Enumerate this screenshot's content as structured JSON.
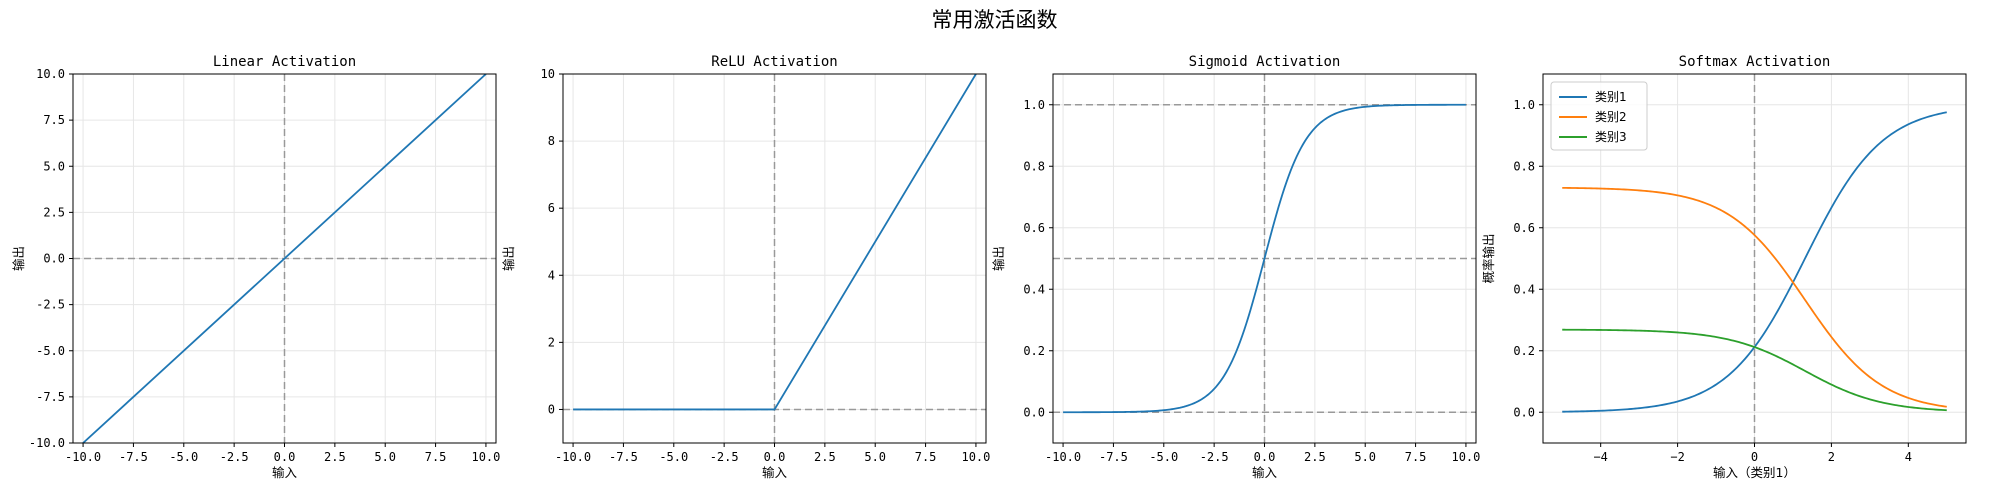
{
  "figure": {
    "suptitle": "常用激活函数"
  },
  "colors": {
    "c1": "#1f77b4",
    "c2": "#ff7f0e",
    "c3": "#2ca02c",
    "reference_line": "#999999",
    "grid": "#e6e6e6"
  },
  "chart_data": [
    {
      "type": "line",
      "title": "Linear Activation",
      "xlabel": "输入",
      "ylabel": "输出",
      "xlim": [
        -10.5,
        10.5
      ],
      "ylim": [
        -10,
        10
      ],
      "xticks": [
        -10,
        -7.5,
        -5,
        -2.5,
        0,
        2.5,
        5,
        7.5,
        10
      ],
      "xtick_labels": [
        "-10.0",
        "-7.5",
        "-5.0",
        "-2.5",
        "0.0",
        "2.5",
        "5.0",
        "7.5",
        "10.0"
      ],
      "yticks": [
        -10,
        -7.5,
        -5,
        -2.5,
        0,
        2.5,
        5,
        7.5,
        10
      ],
      "ytick_labels": [
        "-10.0",
        "-7.5",
        "-5.0",
        "-2.5",
        "0.0",
        "2.5",
        "5.0",
        "7.5",
        "10.0"
      ],
      "grid": true,
      "reference_lines": {
        "horizontal": [
          0
        ],
        "vertical": [
          0
        ]
      },
      "series": [
        {
          "function": "linear",
          "x": [
            -10,
            10
          ],
          "y": [
            -10,
            10
          ]
        }
      ]
    },
    {
      "type": "line",
      "title": "ReLU Activation",
      "xlabel": "输入",
      "ylabel": "输出",
      "xlim": [
        -10.5,
        10.5
      ],
      "ylim": [
        -1,
        10
      ],
      "xticks": [
        -10,
        -7.5,
        -5,
        -2.5,
        0,
        2.5,
        5,
        7.5,
        10
      ],
      "xtick_labels": [
        "-10.0",
        "-7.5",
        "-5.0",
        "-2.5",
        "0.0",
        "2.5",
        "5.0",
        "7.5",
        "10.0"
      ],
      "yticks": [
        0,
        2,
        4,
        6,
        8,
        10
      ],
      "ytick_labels": [
        "0",
        "2",
        "4",
        "6",
        "8",
        "10"
      ],
      "grid": true,
      "reference_lines": {
        "horizontal": [
          0
        ],
        "vertical": [
          0
        ]
      },
      "series": [
        {
          "function": "relu",
          "x": [
            -10,
            0,
            10
          ],
          "y": [
            0,
            0,
            10
          ]
        }
      ]
    },
    {
      "type": "line",
      "title": "Sigmoid Activation",
      "xlabel": "输入",
      "ylabel": "输出",
      "xlim": [
        -10.5,
        10.5
      ],
      "ylim": [
        -0.1,
        1.1
      ],
      "xticks": [
        -10,
        -7.5,
        -5,
        -2.5,
        0,
        2.5,
        5,
        7.5,
        10
      ],
      "xtick_labels": [
        "-10.0",
        "-7.5",
        "-5.0",
        "-2.5",
        "0.0",
        "2.5",
        "5.0",
        "7.5",
        "10.0"
      ],
      "yticks": [
        0,
        0.2,
        0.4,
        0.6,
        0.8,
        1.0
      ],
      "ytick_labels": [
        "0.0",
        "0.2",
        "0.4",
        "0.6",
        "0.8",
        "1.0"
      ],
      "grid": true,
      "reference_lines": {
        "horizontal": [
          0,
          0.5,
          1
        ],
        "vertical": [
          0
        ]
      },
      "series": [
        {
          "function": "sigmoid",
          "x_range": [
            -10,
            10
          ]
        }
      ]
    },
    {
      "type": "line",
      "title": "Softmax Activation",
      "xlabel": "输入（类别1）",
      "ylabel": "概率输出",
      "xlim": [
        -5.5,
        5.5
      ],
      "ylim": [
        -0.1,
        1.1
      ],
      "xticks": [
        -4,
        -2,
        0,
        2,
        4
      ],
      "xtick_labels": [
        "−4",
        "−2",
        "0",
        "2",
        "4"
      ],
      "yticks": [
        0,
        0.2,
        0.4,
        0.6,
        0.8,
        1.0
      ],
      "ytick_labels": [
        "0.0",
        "0.2",
        "0.4",
        "0.6",
        "0.8",
        "1.0"
      ],
      "grid": true,
      "legend": "top-left",
      "reference_lines": {
        "horizontal": [],
        "vertical": [
          0
        ]
      },
      "softmax_fixed_logits": [
        1,
        0
      ],
      "series": [
        {
          "name": "类别1",
          "function": "softmax_component_1",
          "x_range": [
            -5,
            5
          ]
        },
        {
          "name": "类别2",
          "function": "softmax_component_2",
          "x_range": [
            -5,
            5
          ]
        },
        {
          "name": "类别3",
          "function": "softmax_component_3",
          "x_range": [
            -5,
            5
          ]
        }
      ]
    }
  ]
}
